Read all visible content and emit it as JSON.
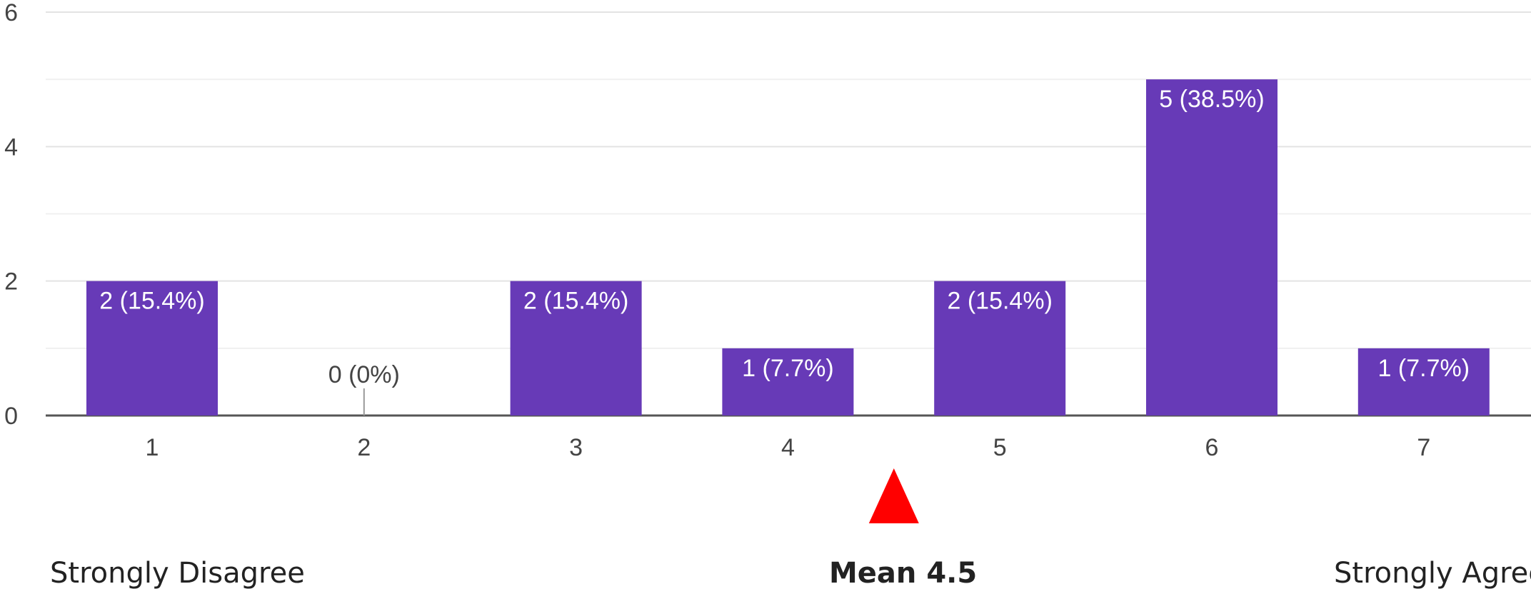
{
  "chart_data": {
    "type": "bar",
    "categories": [
      "1",
      "2",
      "3",
      "4",
      "5",
      "6",
      "7"
    ],
    "values": [
      2,
      0,
      2,
      1,
      2,
      5,
      1
    ],
    "data_labels": [
      "2 (15.4%)",
      "0 (0%)",
      "2 (15.4%)",
      "1 (7.7%)",
      "2 (15.4%)",
      "5 (38.5%)",
      "1 (7.7%)"
    ],
    "ylim": [
      0,
      6
    ],
    "yticks": [
      "0",
      "2",
      "4",
      "6"
    ],
    "grid": true,
    "bar_color": "#673ab7",
    "mean_marker": {
      "value": 4.5,
      "color": "#ff0000"
    }
  },
  "captions": {
    "left": "Strongly Disagree",
    "mean": "Mean 4.5",
    "right": "Strongly Agree"
  }
}
